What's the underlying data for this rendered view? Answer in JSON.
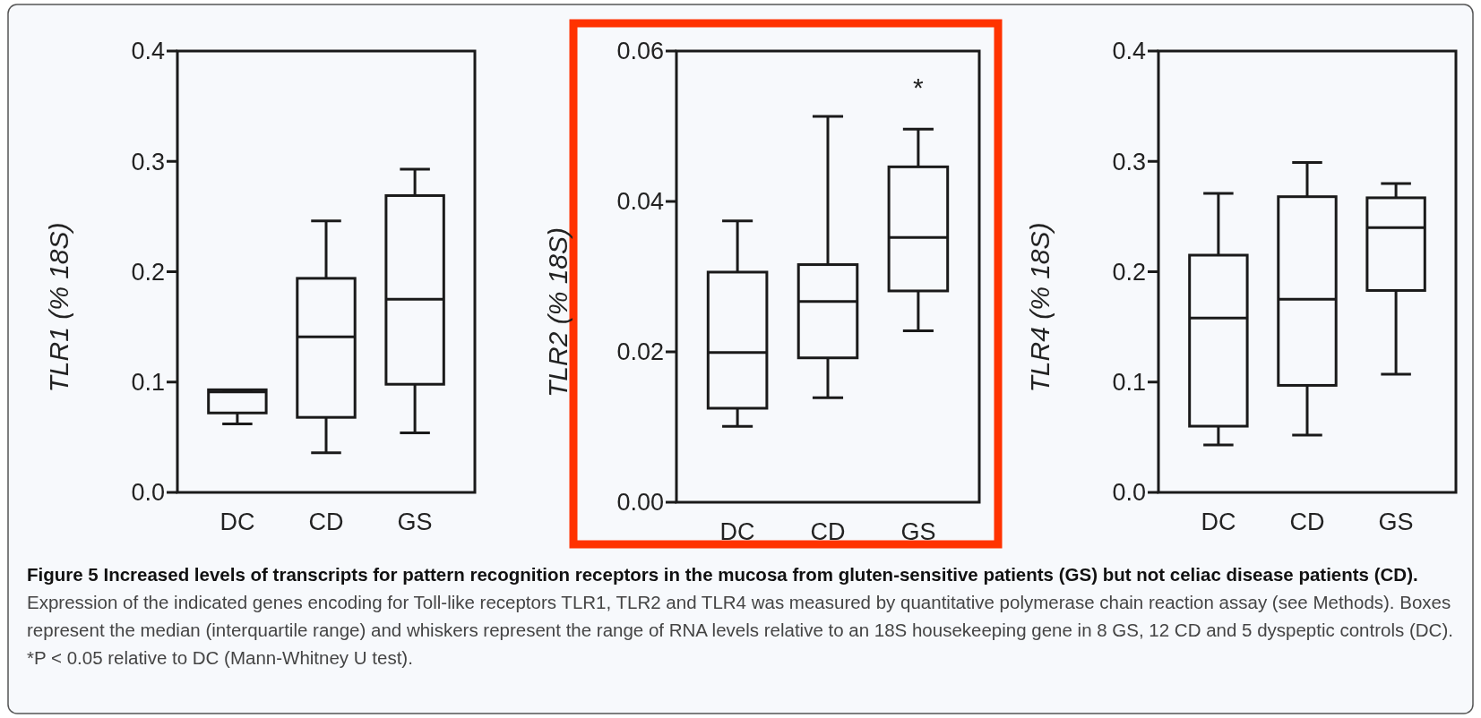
{
  "chart_data": [
    {
      "type": "box",
      "ylabel": "TLR1 (% 18S)",
      "categories": [
        "DC",
        "CD",
        "GS"
      ],
      "ylim": [
        0,
        0.4
      ],
      "yticks": [
        {
          "value": 0,
          "label": "0.0"
        },
        0.1,
        0.2,
        0.3,
        0.4
      ],
      "boxes": [
        {
          "low": 0.062,
          "q1": 0.072,
          "median": 0.091,
          "q3": 0.093,
          "high": 0.093
        },
        {
          "low": 0.036,
          "q1": 0.068,
          "median": 0.141,
          "q3": 0.194,
          "high": 0.246
        },
        {
          "low": 0.054,
          "q1": 0.098,
          "median": 0.175,
          "q3": 0.269,
          "high": 0.293
        }
      ],
      "color": "#1a1a1a",
      "grid": false,
      "title": "Figure 5 Increased levels of transcripts for pattern recognition receptors in the mucosa from gluten-sensitive patients (GS) but not celiac disease patients (CD).",
      "annotations": [
        "Expression of the indicated genes encoding for Toll-like receptors TLR1, TLR2 and TLR4 was measured by quantitative polymerase chain reaction assay (see Methods). Boxes represent the median (interquartile range) and whiskers represent the range of RNA levels relative to an 18S housekeeping gene in 8 GS, 12 CD and 5 dyspeptic controls (DC). *P < 0.05 relative to DC (Mann-Whitney U test)."
      ]
    },
    {
      "type": "box",
      "ylabel": "TLR2 (% 18S)",
      "categories": [
        "DC",
        "CD",
        "GS"
      ],
      "ylim": [
        0,
        0.06
      ],
      "yticks": [
        {
          "value": 0,
          "label": "0.00"
        },
        {
          "value": 0.02,
          "label": "0.02"
        },
        {
          "value": 0.04,
          "label": "0.04"
        },
        {
          "value": 0.06,
          "label": "0.06"
        }
      ],
      "boxes": [
        {
          "low": 0.0101,
          "q1": 0.0125,
          "median": 0.0199,
          "q3": 0.0306,
          "high": 0.0374
        },
        {
          "low": 0.0139,
          "q1": 0.0192,
          "median": 0.0267,
          "q3": 0.0316,
          "high": 0.0513
        },
        {
          "low": 0.0228,
          "q1": 0.0281,
          "median": 0.0352,
          "q3": 0.0446,
          "high": 0.0496
        }
      ],
      "color": "#1a1a1a",
      "grid": false,
      "annotations": [
        "*"
      ]
    },
    {
      "type": "box",
      "ylabel": "TLR4 (% 18S)",
      "categories": [
        "DC",
        "CD",
        "GS"
      ],
      "ylim": [
        0,
        0.4
      ],
      "yticks": [
        {
          "value": 0,
          "label": "0.0"
        },
        0.1,
        0.2,
        0.3,
        0.4
      ],
      "boxes": [
        {
          "low": 0.043,
          "q1": 0.06,
          "median": 0.158,
          "q3": 0.215,
          "high": 0.271
        },
        {
          "low": 0.052,
          "q1": 0.097,
          "median": 0.175,
          "q3": 0.268,
          "high": 0.299
        },
        {
          "low": 0.107,
          "q1": 0.183,
          "median": 0.24,
          "q3": 0.267,
          "high": 0.28
        }
      ],
      "color": "#1a1a1a",
      "grid": false
    }
  ]
}
